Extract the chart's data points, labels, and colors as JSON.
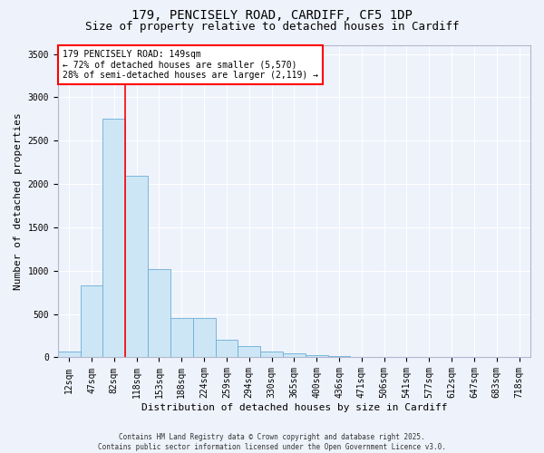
{
  "title1": "179, PENCISELY ROAD, CARDIFF, CF5 1DP",
  "title2": "Size of property relative to detached houses in Cardiff",
  "xlabel": "Distribution of detached houses by size in Cardiff",
  "ylabel": "Number of detached properties",
  "categories": [
    "12sqm",
    "47sqm",
    "82sqm",
    "118sqm",
    "153sqm",
    "188sqm",
    "224sqm",
    "259sqm",
    "294sqm",
    "330sqm",
    "365sqm",
    "400sqm",
    "436sqm",
    "471sqm",
    "506sqm",
    "541sqm",
    "577sqm",
    "612sqm",
    "647sqm",
    "683sqm",
    "718sqm"
  ],
  "values": [
    70,
    830,
    2750,
    2100,
    1020,
    450,
    450,
    200,
    130,
    70,
    50,
    30,
    15,
    8,
    5,
    3,
    2,
    2,
    1,
    1,
    1
  ],
  "bar_color": "#cde6f5",
  "bar_edge_color": "#6aaed6",
  "vline_color": "red",
  "vline_pos": 2.5,
  "annotation_text": "179 PENCISELY ROAD: 149sqm\n← 72% of detached houses are smaller (5,570)\n28% of semi-detached houses are larger (2,119) →",
  "annotation_box_color": "white",
  "annotation_box_edge": "red",
  "ylim": [
    0,
    3600
  ],
  "yticks": [
    0,
    500,
    1000,
    1500,
    2000,
    2500,
    3000,
    3500
  ],
  "footnote": "Contains HM Land Registry data © Crown copyright and database right 2025.\nContains public sector information licensed under the Open Government Licence v3.0.",
  "bg_color": "#eef2fb",
  "grid_color": "#ffffff",
  "title_fontsize": 10,
  "subtitle_fontsize": 9,
  "axis_label_fontsize": 8,
  "tick_fontsize": 7,
  "footnote_fontsize": 5.5,
  "annot_fontsize": 7
}
